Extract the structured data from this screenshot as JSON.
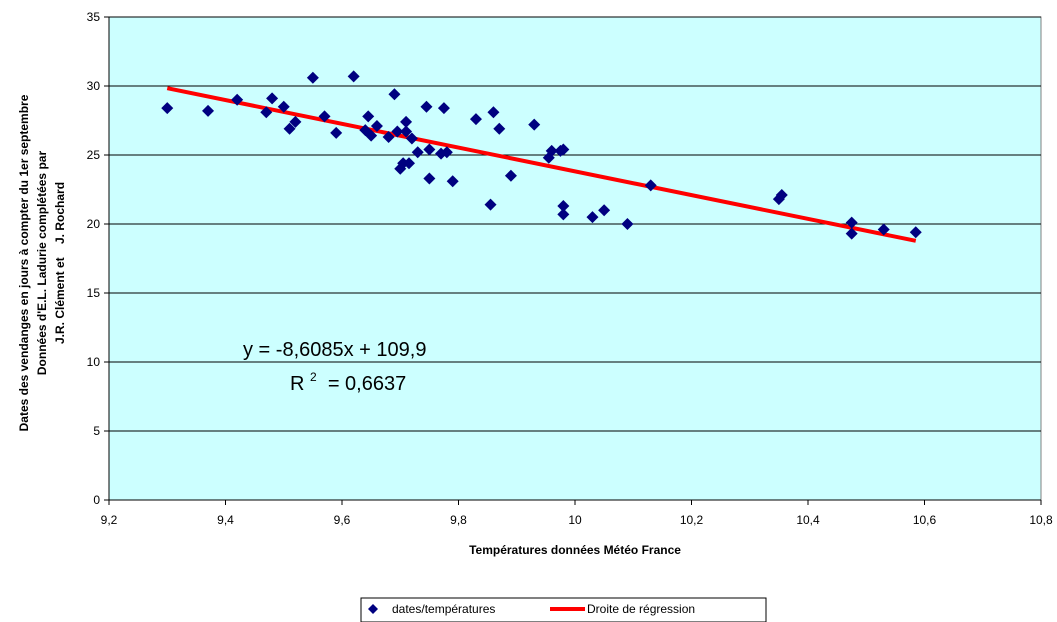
{
  "chart_data": {
    "type": "scatter",
    "xlabel": "Températures données Météo France",
    "ylabel_lines": [
      "Dates des vendanges en jours à compter du 1er septembre",
      "Données d'E.L. Ladurie complétées par",
      "J.R. Clément et    J. Rochard"
    ],
    "xlim": [
      9.2,
      10.8
    ],
    "ylim": [
      0,
      35
    ],
    "xticks": [
      "9,2",
      "9,4",
      "9,6",
      "9,8",
      "10",
      "10,2",
      "10,4",
      "10,6",
      "10,8"
    ],
    "yticks": [
      "0",
      "5",
      "10",
      "15",
      "20",
      "25",
      "30",
      "35"
    ],
    "grid": "horizontal",
    "plot_background": "#ccffff",
    "series": [
      {
        "name": "dates/températures",
        "color": "#000080",
        "marker": "diamond",
        "points": [
          [
            9.3,
            28.4
          ],
          [
            9.37,
            28.2
          ],
          [
            9.42,
            29.0
          ],
          [
            9.47,
            28.1
          ],
          [
            9.48,
            29.1
          ],
          [
            9.5,
            28.5
          ],
          [
            9.51,
            26.9
          ],
          [
            9.52,
            27.4
          ],
          [
            9.55,
            30.6
          ],
          [
            9.57,
            27.8
          ],
          [
            9.59,
            26.6
          ],
          [
            9.62,
            30.7
          ],
          [
            9.64,
            26.8
          ],
          [
            9.645,
            27.8
          ],
          [
            9.65,
            26.4
          ],
          [
            9.66,
            27.1
          ],
          [
            9.68,
            26.3
          ],
          [
            9.69,
            29.4
          ],
          [
            9.695,
            26.7
          ],
          [
            9.7,
            24.0
          ],
          [
            9.705,
            24.4
          ],
          [
            9.71,
            27.4
          ],
          [
            9.71,
            26.7
          ],
          [
            9.715,
            24.4
          ],
          [
            9.72,
            26.2
          ],
          [
            9.73,
            25.2
          ],
          [
            9.745,
            28.5
          ],
          [
            9.75,
            23.3
          ],
          [
            9.75,
            25.4
          ],
          [
            9.77,
            25.1
          ],
          [
            9.775,
            28.4
          ],
          [
            9.78,
            25.2
          ],
          [
            9.79,
            23.1
          ],
          [
            9.83,
            27.6
          ],
          [
            9.855,
            21.4
          ],
          [
            9.86,
            28.1
          ],
          [
            9.87,
            26.9
          ],
          [
            9.89,
            23.5
          ],
          [
            9.93,
            27.2
          ],
          [
            9.955,
            24.8
          ],
          [
            9.96,
            25.3
          ],
          [
            9.975,
            25.3
          ],
          [
            9.98,
            25.4
          ],
          [
            9.98,
            20.7
          ],
          [
            9.98,
            21.3
          ],
          [
            10.03,
            20.5
          ],
          [
            10.05,
            21.0
          ],
          [
            10.09,
            20.0
          ],
          [
            10.13,
            22.8
          ],
          [
            10.35,
            21.8
          ],
          [
            10.355,
            22.1
          ],
          [
            10.475,
            19.3
          ],
          [
            10.475,
            20.1
          ],
          [
            10.53,
            19.6
          ],
          [
            10.585,
            19.4
          ]
        ]
      },
      {
        "name": "Droite de régression",
        "color": "#ff0000",
        "type": "line",
        "slope": -8.6085,
        "intercept": 109.9,
        "x_range": [
          9.3,
          10.585
        ]
      }
    ],
    "annotations": {
      "equation": "y = -8,6085x + 109,9",
      "r2_prefix": "R",
      "r2_sup": "2",
      "r2_value": " = 0,6637"
    },
    "legend": {
      "position": "bottom-center",
      "items": [
        "dates/températures",
        "Droite de régression"
      ]
    }
  }
}
